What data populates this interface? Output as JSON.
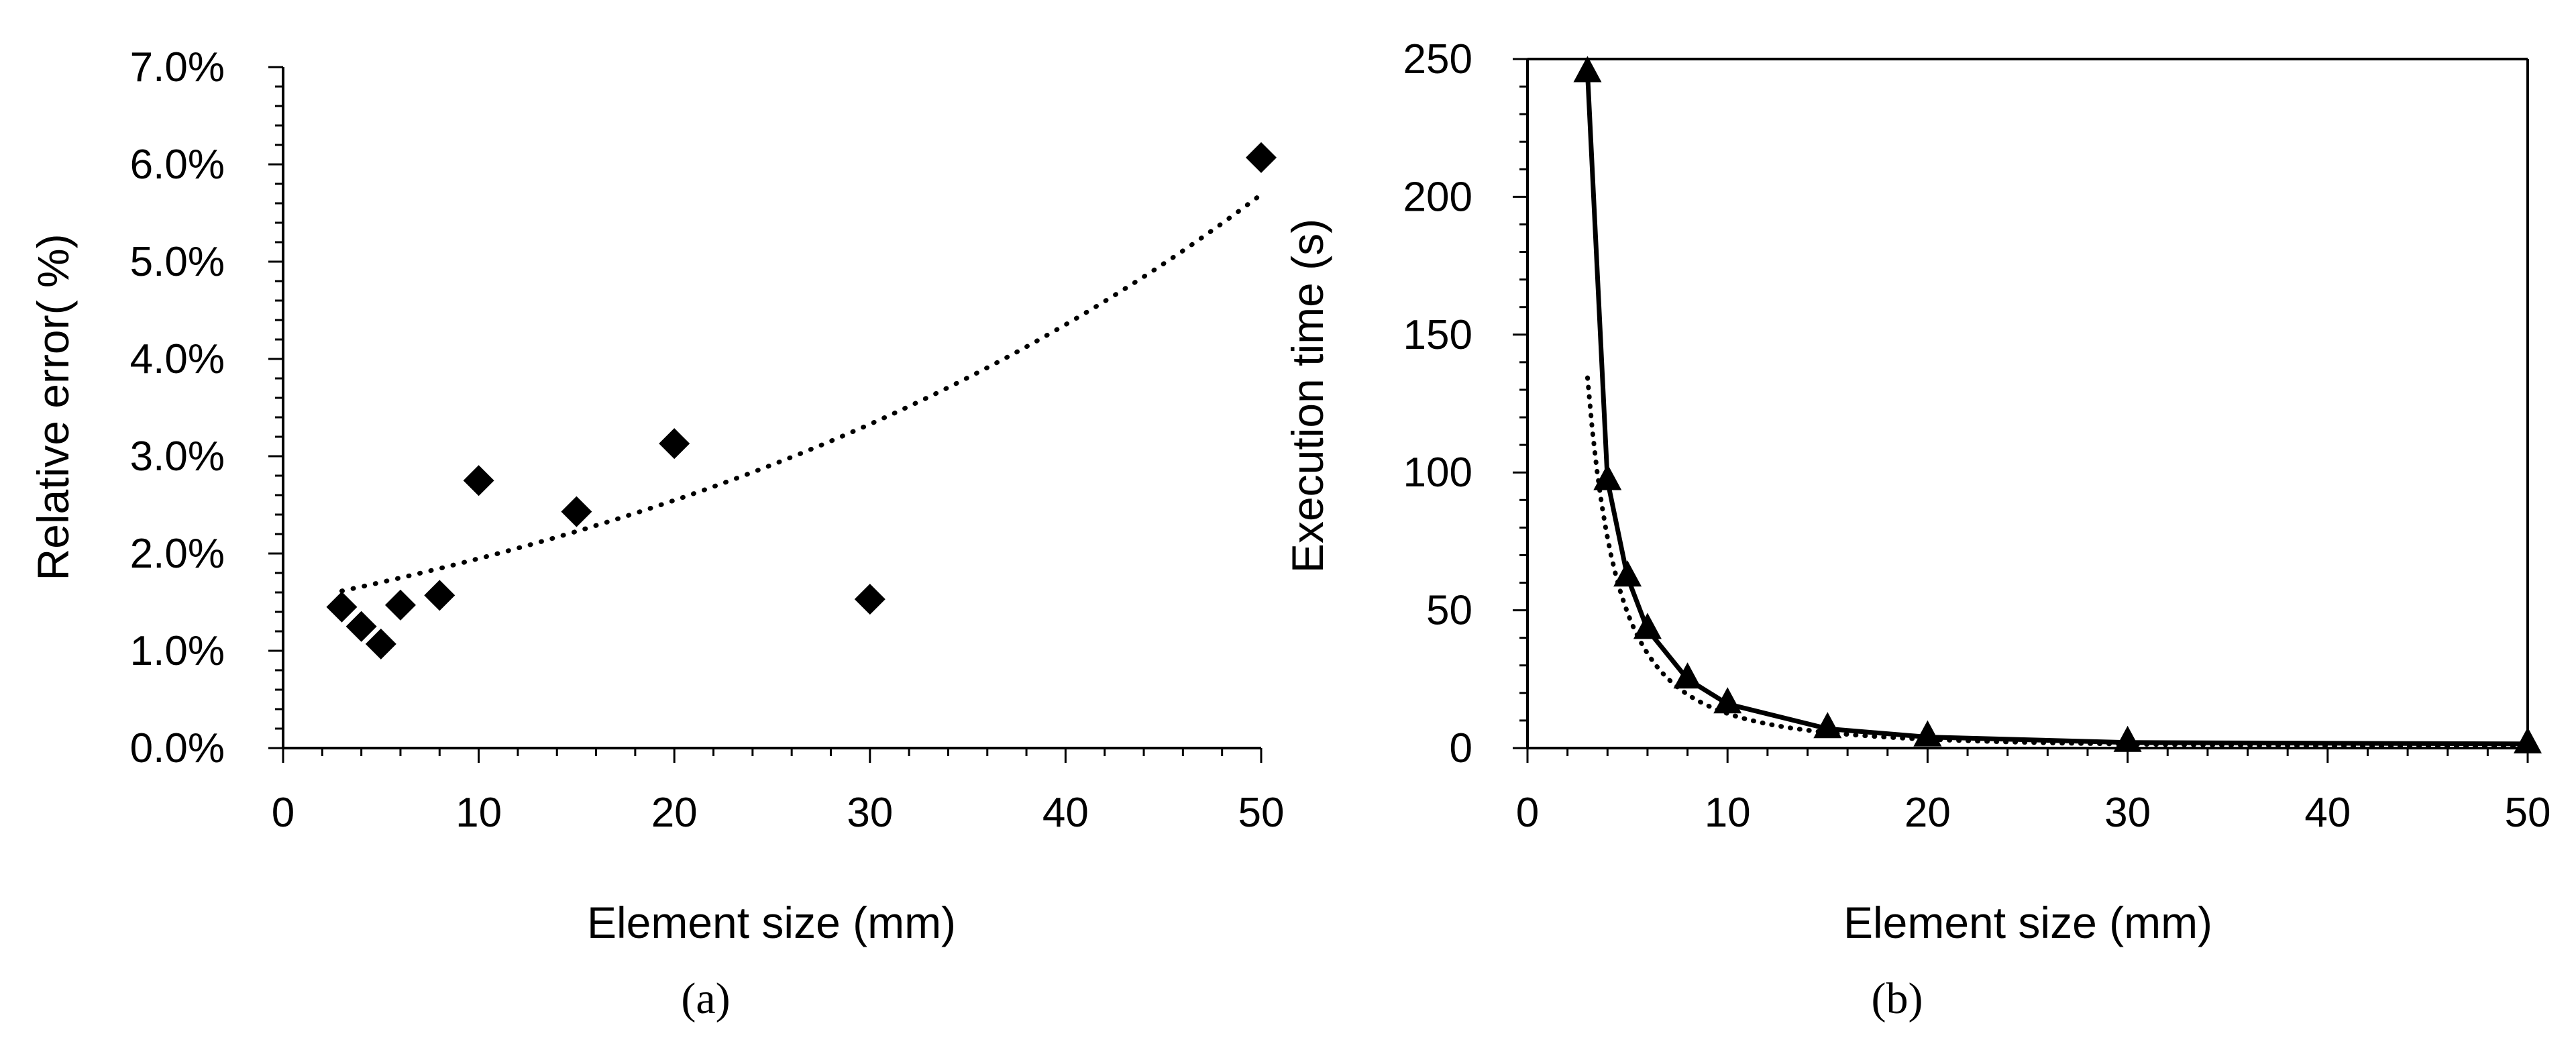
{
  "chart_data": [
    {
      "type": "scatter",
      "caption": "(a)",
      "xlabel": "Element size (mm)",
      "ylabel": "Relative error( %)",
      "xlim": [
        0,
        50
      ],
      "ylim": [
        0,
        7
      ],
      "x_ticks": [
        0,
        10,
        20,
        30,
        40,
        50
      ],
      "x_tick_labels": [
        "0",
        "10",
        "20",
        "30",
        "40",
        "50"
      ],
      "y_ticks": [
        0,
        1,
        2,
        3,
        4,
        5,
        6,
        7
      ],
      "y_tick_labels": [
        "0.0%",
        "1.0%",
        "2.0%",
        "3.0%",
        "4.0%",
        "5.0%",
        "6.0%",
        "7.0%"
      ],
      "grid": false,
      "series": [
        {
          "name": "Relative error",
          "marker": "diamond",
          "x": [
            3,
            4,
            5,
            6,
            8,
            10,
            15,
            20,
            30,
            50
          ],
          "y": [
            1.45,
            1.25,
            1.07,
            1.47,
            1.57,
            2.75,
            2.43,
            3.13,
            1.53,
            6.07
          ]
        }
      ],
      "trendline": {
        "type": "exponential",
        "style": "dotted",
        "a": 1.49,
        "b": 0.0268,
        "x_range": [
          3,
          50
        ]
      }
    },
    {
      "type": "line",
      "caption": "(b)",
      "xlabel": "Element size (mm)",
      "ylabel": "Execution time (s)",
      "xlim": [
        0,
        50
      ],
      "ylim": [
        0,
        250
      ],
      "x_ticks": [
        0,
        10,
        20,
        30,
        40,
        50
      ],
      "x_tick_labels": [
        "0",
        "10",
        "20",
        "30",
        "40",
        "50"
      ],
      "y_ticks": [
        0,
        50,
        100,
        150,
        200,
        250
      ],
      "y_tick_labels": [
        "0",
        "50",
        "100",
        "150",
        "200",
        "250"
      ],
      "grid": false,
      "series": [
        {
          "name": "Execution time",
          "marker": "triangle",
          "x": [
            3,
            4,
            5,
            6,
            8,
            10,
            15,
            20,
            30,
            50
          ],
          "y": [
            245,
            97,
            62,
            43,
            25,
            16,
            7,
            4,
            2,
            1.5
          ]
        }
      ],
      "trendline": {
        "type": "power",
        "style": "dotted",
        "a": 1170,
        "b": -1.97,
        "x_range": [
          3,
          50
        ]
      }
    }
  ]
}
